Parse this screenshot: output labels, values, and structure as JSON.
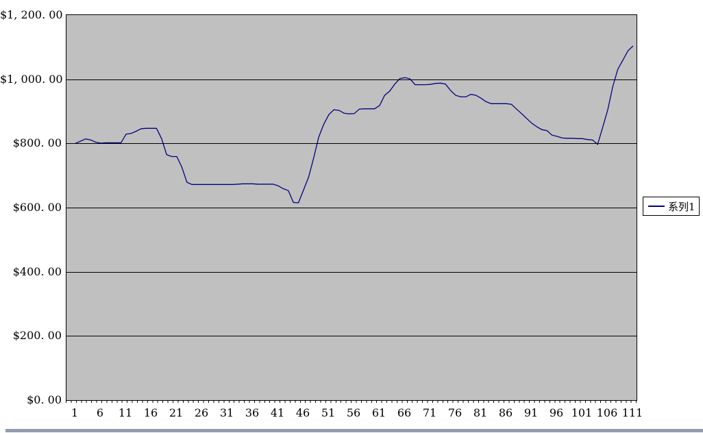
{
  "chart": {
    "plot_bg_color": "#c0c0c0",
    "line_color": "#000080",
    "grid_color": "#000000",
    "window_strip_color": "#939bac",
    "legend": {
      "label": "系列1"
    }
  },
  "chart_data": {
    "type": "line",
    "title": "",
    "xlabel": "",
    "ylabel": "",
    "ylim": [
      0,
      1200
    ],
    "grid": "horizontal",
    "legend_position": "right",
    "y_ticks": [
      {
        "value": 1200,
        "label": "$1, 200. 00"
      },
      {
        "value": 1000,
        "label": "$1, 000. 00"
      },
      {
        "value": 800,
        "label": "$800. 00"
      },
      {
        "value": 600,
        "label": "$600. 00"
      },
      {
        "value": 400,
        "label": "$400. 00"
      },
      {
        "value": 200,
        "label": "$200. 00"
      },
      {
        "value": 0,
        "label": "$0. 00"
      }
    ],
    "x_ticks": [
      1,
      6,
      11,
      16,
      21,
      26,
      31,
      36,
      41,
      46,
      51,
      56,
      61,
      66,
      71,
      76,
      81,
      86,
      91,
      96,
      101,
      106,
      111
    ],
    "x": [
      1,
      2,
      3,
      4,
      5,
      6,
      7,
      8,
      9,
      10,
      11,
      12,
      13,
      14,
      15,
      16,
      17,
      18,
      19,
      20,
      21,
      22,
      23,
      24,
      25,
      26,
      27,
      28,
      29,
      30,
      31,
      32,
      33,
      34,
      35,
      36,
      37,
      38,
      39,
      40,
      41,
      42,
      43,
      44,
      45,
      46,
      47,
      48,
      49,
      50,
      51,
      52,
      53,
      54,
      55,
      56,
      57,
      58,
      59,
      60,
      61,
      62,
      63,
      64,
      65,
      66,
      67,
      68,
      69,
      70,
      71,
      72,
      73,
      74,
      75,
      76,
      77,
      78,
      79,
      80,
      81,
      82,
      83,
      84,
      85,
      86,
      87,
      88,
      89,
      90,
      91,
      92,
      93,
      94,
      95,
      96,
      97,
      98,
      99,
      100,
      101,
      102,
      103,
      104,
      105,
      106,
      107,
      108,
      109,
      110,
      111
    ],
    "series": [
      {
        "name": "系列1",
        "values": [
          800,
          807,
          814,
          811,
          804,
          801,
          802,
          802,
          802,
          802,
          829,
          831,
          838,
          846,
          847,
          847,
          847,
          815,
          765,
          759,
          759,
          726,
          679,
          672,
          672,
          672,
          672,
          672,
          672,
          672,
          672,
          672,
          673,
          674,
          674,
          674,
          673,
          673,
          673,
          673,
          668,
          659,
          653,
          616,
          615,
          655,
          695,
          755,
          820,
          860,
          890,
          905,
          903,
          894,
          892,
          893,
          907,
          908,
          908,
          908,
          918,
          950,
          963,
          985,
          1002,
          1005,
          1001,
          983,
          983,
          983,
          984,
          987,
          988,
          985,
          965,
          950,
          945,
          945,
          953,
          950,
          941,
          930,
          924,
          924,
          924,
          924,
          922,
          907,
          893,
          878,
          863,
          852,
          843,
          840,
          826,
          822,
          817,
          816,
          816,
          815,
          815,
          812,
          811,
          797,
          850,
          905,
          978,
          1032,
          1060,
          1089,
          1104
        ]
      }
    ]
  }
}
